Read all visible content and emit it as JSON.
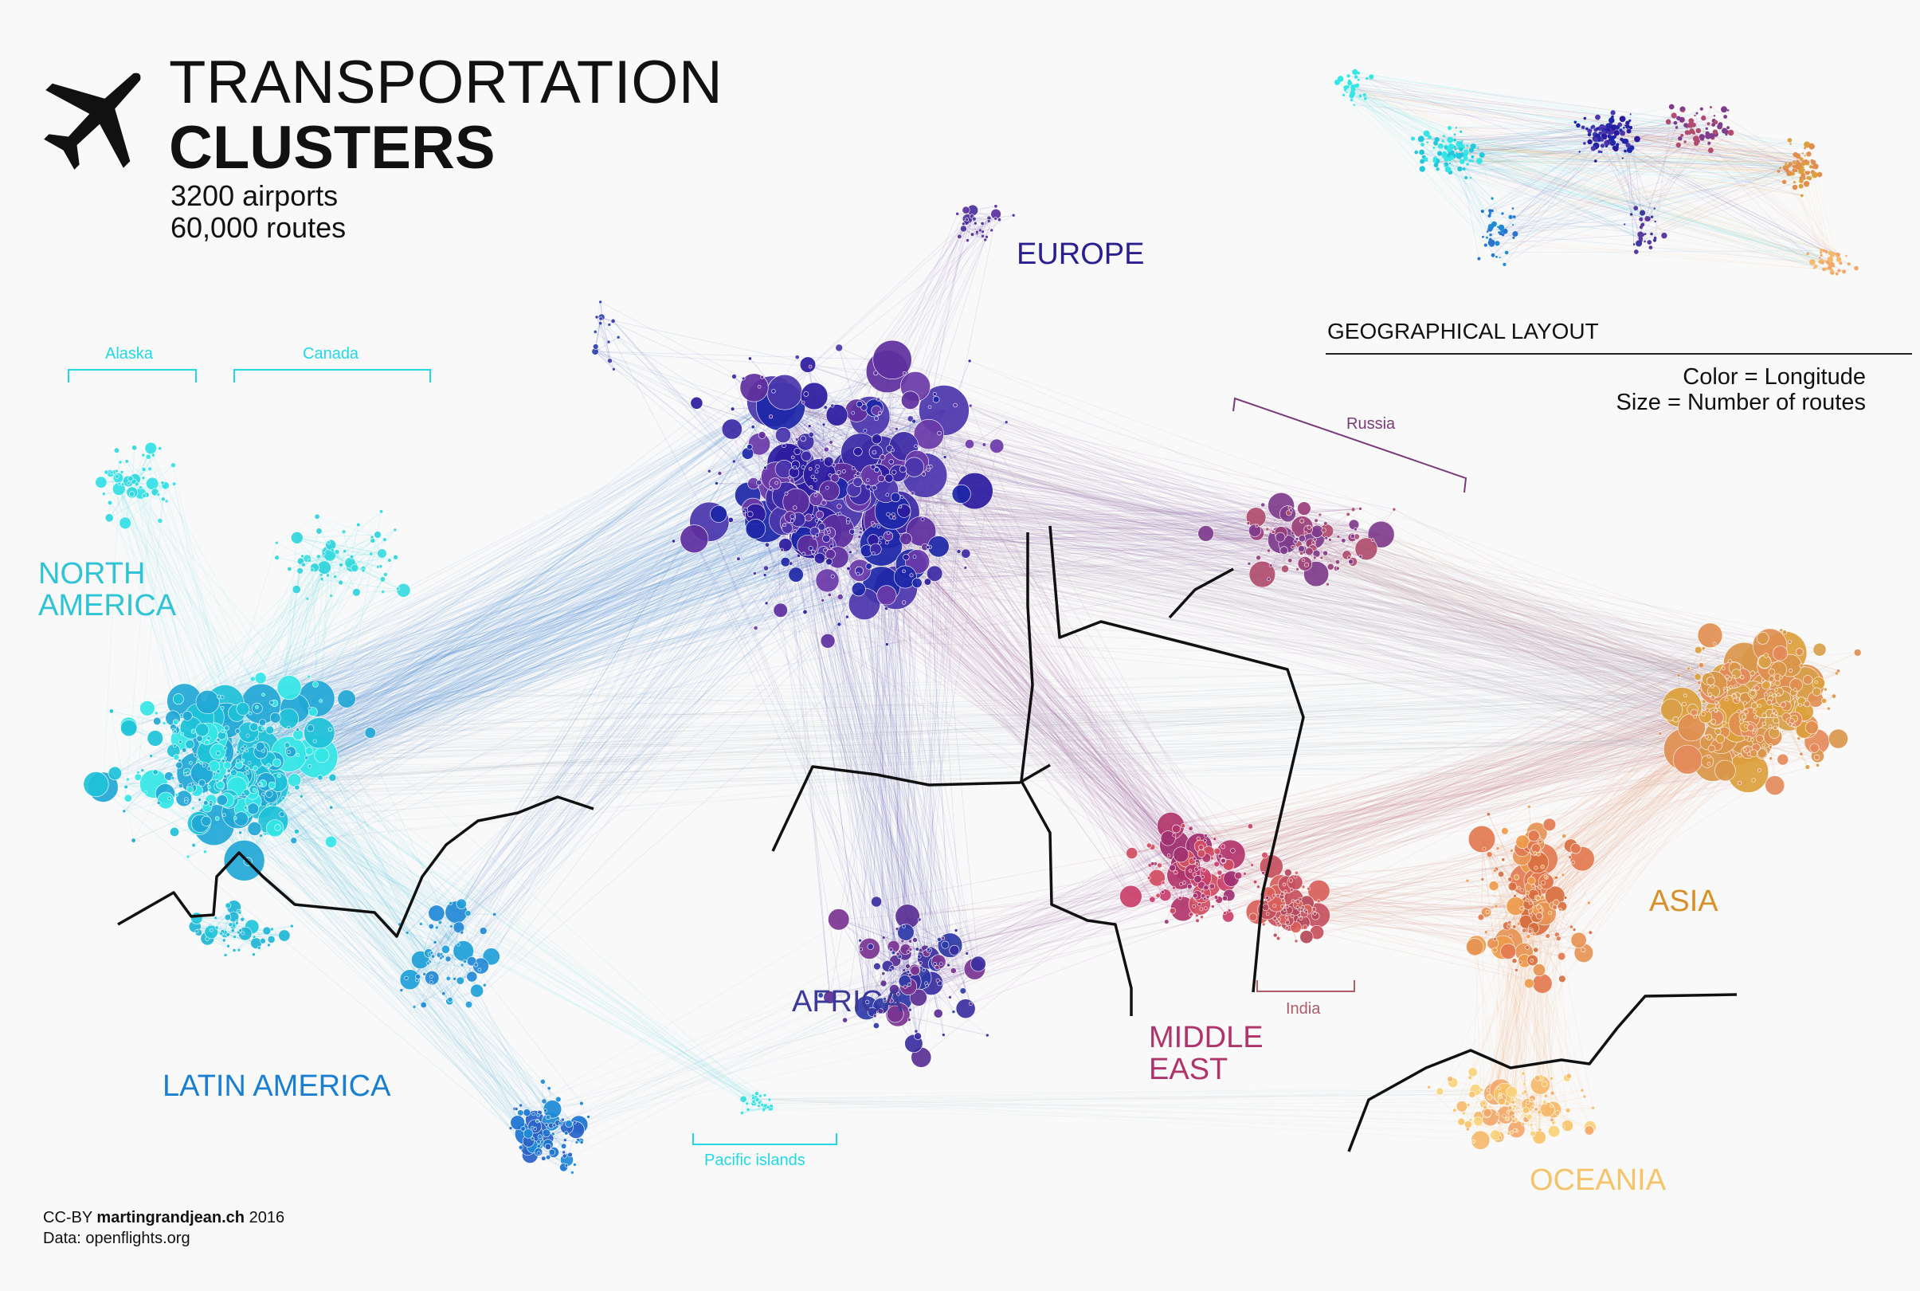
{
  "header": {
    "title_line1": "TRANSPORTATION",
    "title_line2": "CLUSTERS",
    "airports": "3200 airports",
    "routes": "60,000 routes",
    "icon": "airplane-icon"
  },
  "inset": {
    "title": "GEOGRAPHICAL LAYOUT"
  },
  "legend": {
    "color_rule": "Color = Longitude",
    "size_rule": "Size = Number of routes"
  },
  "regions": {
    "north_america": [
      "NORTH",
      "AMERICA"
    ],
    "latin_america": "LATIN AMERICA",
    "europe": "EUROPE",
    "africa": "AFRICA",
    "middle_east": [
      "MIDDLE",
      "EAST"
    ],
    "asia": "ASIA",
    "oceania": "OCEANIA"
  },
  "subregions": {
    "alaska": "Alaska",
    "canada": "Canada",
    "russia": "Russia",
    "india": "India",
    "pacific_islands": "Pacific islands"
  },
  "footer": {
    "credit_prefix": "CC-BY ",
    "credit_site": "martingrandjean.ch",
    "credit_year": " 2016",
    "data_source": "Data: openflights.org"
  },
  "colors": {
    "north_america": "#2ec4d6",
    "latin_america": "#1a7fd1",
    "europe": "#2a1f8f",
    "africa": "#3b3a9a",
    "middle_east": "#b0336a",
    "asia": "#d8902a",
    "oceania": "#f5c36b",
    "subregion_cyan": "#22d8e6",
    "russia": "#7a3a7a",
    "india": "#b05a6a",
    "divider": "#111111"
  }
}
